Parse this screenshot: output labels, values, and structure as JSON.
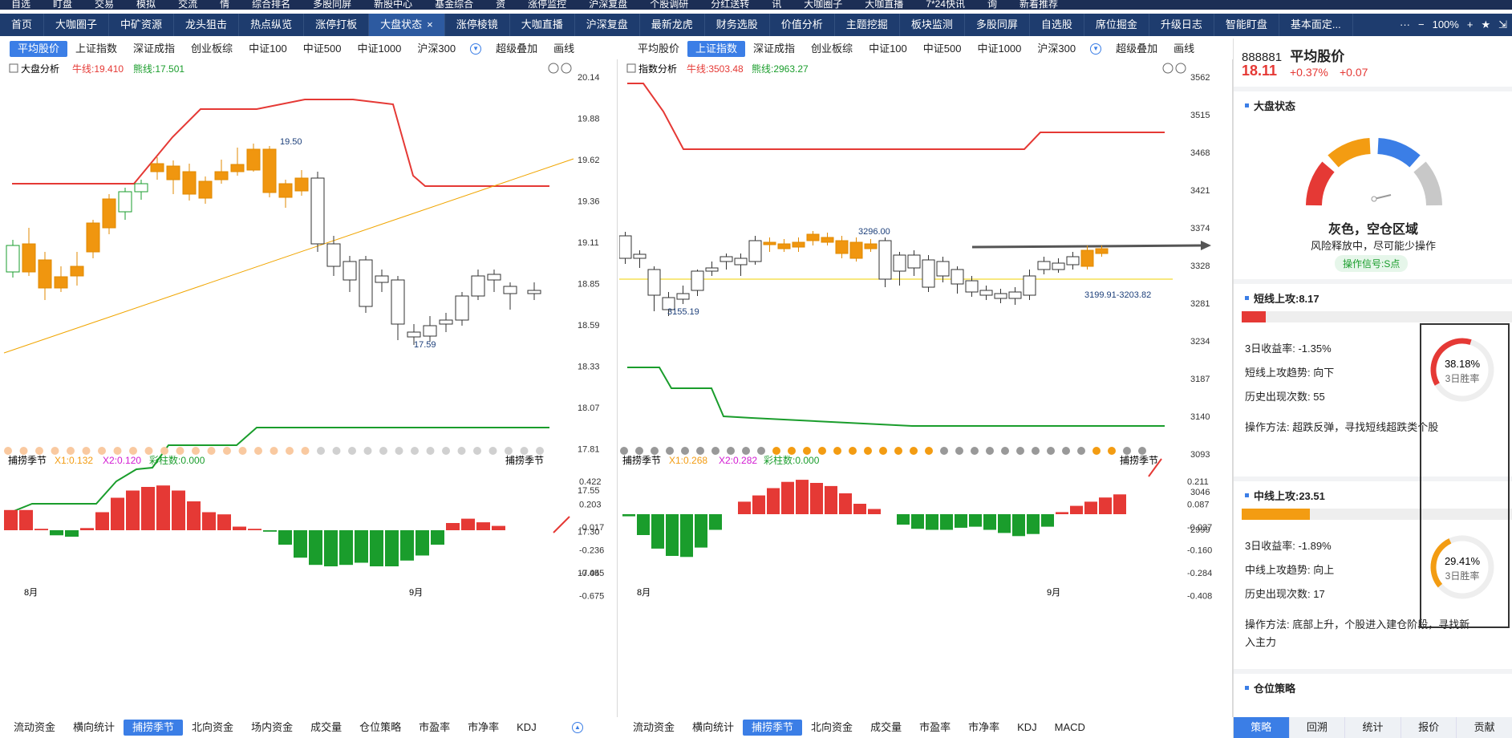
{
  "topnav": [
    "自选",
    "盯盘",
    "交易",
    "模拟",
    "交流",
    "情",
    "综合排名",
    "多股同屏",
    "新股中心",
    "基金综合",
    "资",
    "涨停监控",
    "沪深复盘",
    "个股调研",
    "分红送转",
    "讯",
    "大咖圈子",
    "大咖直播",
    "7*24快讯",
    "询",
    "新着推荐"
  ],
  "tabs": [
    "首页",
    "大咖圈子",
    "中矿资源",
    "龙头狙击",
    "热点纵览",
    "涨停打板",
    "大盘状态",
    "涨停棱镜",
    "大咖直播",
    "沪深复盘",
    "最新龙虎",
    "财务选股",
    "价值分析",
    "主题挖掘",
    "板块监测",
    "多股同屏",
    "自选股",
    "席位掘金",
    "升级日志",
    "智能盯盘",
    "基本面定..."
  ],
  "tab_close": "×",
  "zoom": "100%",
  "left": {
    "index_tabs": [
      "平均股价",
      "上证指数",
      "深证成指",
      "创业板综",
      "中证100",
      "中证500",
      "中证1000",
      "沪深300"
    ],
    "extra": [
      "超级叠加",
      "画线"
    ],
    "title": "大盘分析",
    "bull": "牛线:19.410",
    "bear": "熊线:17.501",
    "yticks": [
      "20.14",
      "19.88",
      "19.62",
      "19.36",
      "19.11",
      "18.85",
      "18.59",
      "18.33",
      "18.07",
      "17.81",
      "17.55",
      "17.30",
      "17.04"
    ],
    "ann_high": "19.50",
    "ann_low": "17.59",
    "ind_title": "捕捞季节",
    "x1": "X1:0.132",
    "x2": "X2:0.120",
    "caizhu": "彩柱数:0.000",
    "ind_right": "捕捞季节",
    "ind_yticks": [
      "0.422",
      "0.203",
      "-0.017",
      "-0.236",
      "-0.455",
      "-0.675"
    ],
    "month1": "8月",
    "month2": "9月",
    "bottom_tabs": [
      "流动资金",
      "横向统计",
      "捕捞季节",
      "北向资金",
      "场内资金",
      "成交量",
      "仓位策略",
      "市盈率",
      "市净率",
      "KDJ"
    ]
  },
  "mid": {
    "index_tabs": [
      "平均股价",
      "上证指数",
      "深证成指",
      "创业板综",
      "中证100",
      "中证500",
      "中证1000",
      "沪深300"
    ],
    "extra": [
      "超级叠加",
      "画线"
    ],
    "title": "指数分析",
    "bull": "牛线:3503.48",
    "bear": "熊线:2963.27",
    "yticks": [
      "3562",
      "3515",
      "3468",
      "3421",
      "3374",
      "3328",
      "3281",
      "3234",
      "3187",
      "3140",
      "3093",
      "3046",
      "2999"
    ],
    "ann_high": "3296.00",
    "ann_low": "3155.19",
    "ann_range": "3199.91-3203.82",
    "ind_title": "捕捞季节",
    "x1": "X1:0.268",
    "x2": "X2:0.282",
    "caizhu": "彩柱数:0.000",
    "ind_right": "捕捞季节",
    "ind_yticks": [
      "0.211",
      "0.087",
      "-0.037",
      "-0.160",
      "-0.284",
      "-0.408"
    ],
    "month1": "8月",
    "month2": "9月",
    "bottom_tabs": [
      "流动资金",
      "横向统计",
      "捕捞季节",
      "北向资金",
      "成交量",
      "市盈率",
      "市净率",
      "KDJ",
      "MACD"
    ]
  },
  "right": {
    "code": "888881",
    "name": "平均股价",
    "price": "18.11",
    "pct": "+0.37%",
    "chg": "+0.07",
    "state_title": "大盘状态",
    "state": "灰色，空仓区域",
    "state_desc": "风险释放中，尽可能少操作",
    "signal": "操作信号:S点",
    "short": {
      "title": "短线上攻:8.17",
      "l1": "3日收益率: -1.35%",
      "l2": "短线上攻趋势: 向下",
      "l3": "历史出现次数: 55",
      "l4": "操作方法: 超跌反弹，寻找短线超跌类个股",
      "rate": "38.18%",
      "rate_label": "3日胜率",
      "progress": 0.09
    },
    "mid": {
      "title": "中线上攻:23.51",
      "l1": "3日收益率: -1.89%",
      "l2": "中线上攻趋势: 向上",
      "l3": "历史出现次数: 17",
      "l4a": "操作方法: 底部上升，个股进入建仓阶段，寻找新",
      "l4b": "入主力",
      "rate": "29.41%",
      "rate_label": "3日胜率",
      "progress": 0.25
    },
    "pos": "仓位策略",
    "tabs": [
      "策略",
      "回溯",
      "统计",
      "报价",
      "贡献"
    ]
  },
  "colors": {
    "up": "#e53935",
    "down": "#1a9d2c",
    "orange": "#f39c12",
    "blue": "#3b7ee6",
    "navy": "#1e3c6e"
  }
}
